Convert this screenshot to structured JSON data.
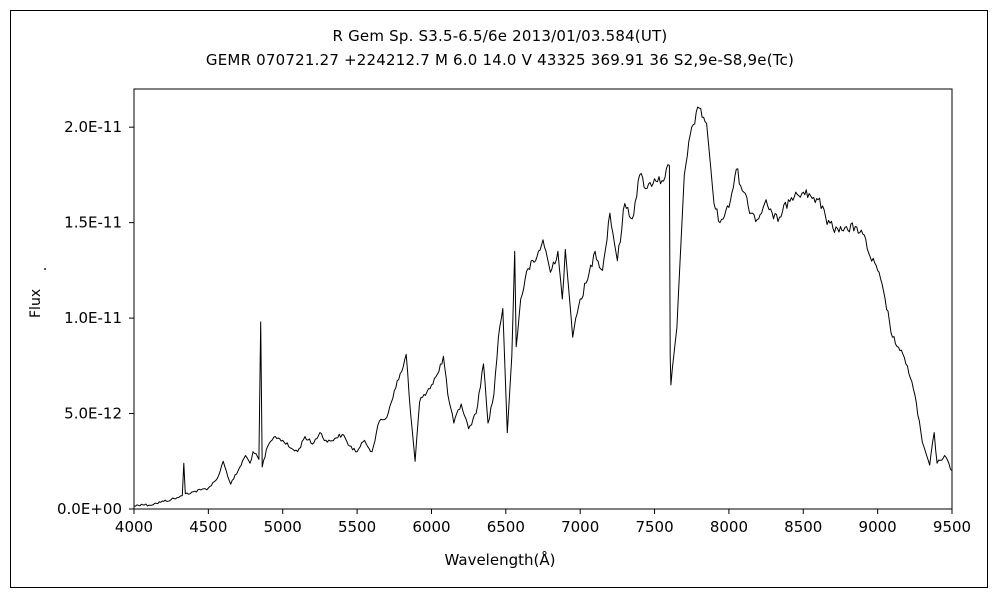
{
  "chart_data": {
    "type": "line",
    "title": "R Gem     Sp. S3.5-6.5/6e     2013/01/03.584(UT)",
    "subtitle": "GEMR 070721.27 +224212.7 M 6.0 14.0 V 43325 369.91 36 S2,9e-S8,9e(Tc)",
    "xlabel": "Wavelength(Å)",
    "ylabel": "Flux",
    "xlim": [
      4000,
      9500
    ],
    "ylim": [
      0,
      2.2e-11
    ],
    "grid": false,
    "x_ticks": [
      4000,
      4500,
      5000,
      5500,
      6000,
      6500,
      7000,
      7500,
      8000,
      8500,
      9000,
      9500
    ],
    "x_tick_labels": [
      "4000",
      "4500",
      "5000",
      "5500",
      "6000",
      "6500",
      "7000",
      "7500",
      "8000",
      "8500",
      "9000",
      "9500"
    ],
    "y_ticks": [
      0,
      5e-12,
      1e-11,
      1.5e-11,
      2e-11
    ],
    "y_tick_labels": [
      "0.0E+00",
      "5.0E-12",
      "1.0E-11",
      "1.5E-11",
      "2.0E-11"
    ],
    "series": [
      {
        "values": [
          [
            4000,
            1.5e-13
          ],
          [
            4050,
            2.5e-13
          ],
          [
            4100,
            2e-13
          ],
          [
            4150,
            3e-13
          ],
          [
            4200,
            4e-13
          ],
          [
            4250,
            5e-13
          ],
          [
            4300,
            6e-13
          ],
          [
            4325,
            7e-13
          ],
          [
            4335,
            2.4e-12
          ],
          [
            4345,
            8e-13
          ],
          [
            4400,
            9e-13
          ],
          [
            4450,
            1e-12
          ],
          [
            4500,
            1.1e-12
          ],
          [
            4550,
            1.5e-12
          ],
          [
            4580,
            2e-12
          ],
          [
            4600,
            2.5e-12
          ],
          [
            4620,
            2e-12
          ],
          [
            4650,
            1.3e-12
          ],
          [
            4700,
            2e-12
          ],
          [
            4750,
            2.8e-12
          ],
          [
            4780,
            2.4e-12
          ],
          [
            4800,
            3e-12
          ],
          [
            4840,
            2.6e-12
          ],
          [
            4852,
            9.8e-12
          ],
          [
            4862,
            2.2e-12
          ],
          [
            4900,
            3.3e-12
          ],
          [
            4950,
            3.8e-12
          ],
          [
            5000,
            3.6e-12
          ],
          [
            5050,
            3.2e-12
          ],
          [
            5100,
            3e-12
          ],
          [
            5150,
            3.8e-12
          ],
          [
            5200,
            3.4e-12
          ],
          [
            5250,
            4e-12
          ],
          [
            5300,
            3.5e-12
          ],
          [
            5350,
            3.7e-12
          ],
          [
            5400,
            3.9e-12
          ],
          [
            5450,
            3.3e-12
          ],
          [
            5500,
            3e-12
          ],
          [
            5550,
            3.6e-12
          ],
          [
            5600,
            3e-12
          ],
          [
            5650,
            4.6e-12
          ],
          [
            5700,
            4.8e-12
          ],
          [
            5750,
            6.2e-12
          ],
          [
            5800,
            7.2e-12
          ],
          [
            5830,
            8.1e-12
          ],
          [
            5860,
            5e-12
          ],
          [
            5890,
            2.5e-12
          ],
          [
            5920,
            5.6e-12
          ],
          [
            5950,
            6e-12
          ],
          [
            6000,
            6.5e-12
          ],
          [
            6050,
            7.2e-12
          ],
          [
            6080,
            8e-12
          ],
          [
            6110,
            6e-12
          ],
          [
            6150,
            4.5e-12
          ],
          [
            6200,
            5.5e-12
          ],
          [
            6250,
            4.2e-12
          ],
          [
            6300,
            5e-12
          ],
          [
            6350,
            7.6e-12
          ],
          [
            6380,
            4.5e-12
          ],
          [
            6420,
            6e-12
          ],
          [
            6450,
            9e-12
          ],
          [
            6480,
            1.05e-11
          ],
          [
            6510,
            4e-12
          ],
          [
            6540,
            8e-12
          ],
          [
            6560,
            1.35e-11
          ],
          [
            6570,
            8.5e-12
          ],
          [
            6600,
            1.1e-11
          ],
          [
            6650,
            1.26e-11
          ],
          [
            6700,
            1.3e-11
          ],
          [
            6750,
            1.41e-11
          ],
          [
            6800,
            1.24e-11
          ],
          [
            6850,
            1.35e-11
          ],
          [
            6880,
            1.1e-11
          ],
          [
            6900,
            1.36e-11
          ],
          [
            6950,
            9e-12
          ],
          [
            7000,
            1.1e-11
          ],
          [
            7050,
            1.2e-11
          ],
          [
            7100,
            1.35e-11
          ],
          [
            7150,
            1.25e-11
          ],
          [
            7200,
            1.55e-11
          ],
          [
            7250,
            1.3e-11
          ],
          [
            7300,
            1.6e-11
          ],
          [
            7350,
            1.52e-11
          ],
          [
            7400,
            1.75e-11
          ],
          [
            7450,
            1.68e-11
          ],
          [
            7500,
            1.73e-11
          ],
          [
            7550,
            1.72e-11
          ],
          [
            7600,
            1.8e-11
          ],
          [
            7605,
            8e-12
          ],
          [
            7610,
            6.5e-12
          ],
          [
            7650,
            9.5e-12
          ],
          [
            7700,
            1.75e-11
          ],
          [
            7750,
            2e-11
          ],
          [
            7800,
            2.1e-11
          ],
          [
            7850,
            2.02e-11
          ],
          [
            7900,
            1.6e-11
          ],
          [
            7940,
            1.5e-11
          ],
          [
            8000,
            1.58e-11
          ],
          [
            8050,
            1.78e-11
          ],
          [
            8100,
            1.66e-11
          ],
          [
            8150,
            1.55e-11
          ],
          [
            8200,
            1.52e-11
          ],
          [
            8250,
            1.62e-11
          ],
          [
            8300,
            1.52e-11
          ],
          [
            8350,
            1.53e-11
          ],
          [
            8400,
            1.62e-11
          ],
          [
            8450,
            1.66e-11
          ],
          [
            8500,
            1.66e-11
          ],
          [
            8550,
            1.64e-11
          ],
          [
            8600,
            1.62e-11
          ],
          [
            8650,
            1.53e-11
          ],
          [
            8700,
            1.47e-11
          ],
          [
            8750,
            1.48e-11
          ],
          [
            8800,
            1.46e-11
          ],
          [
            8850,
            1.48e-11
          ],
          [
            8900,
            1.44e-11
          ],
          [
            8950,
            1.32e-11
          ],
          [
            9000,
            1.25e-11
          ],
          [
            9050,
            1.1e-11
          ],
          [
            9100,
            9e-12
          ],
          [
            9150,
            8.3e-12
          ],
          [
            9200,
            7.5e-12
          ],
          [
            9250,
            6e-12
          ],
          [
            9300,
            3.5e-12
          ],
          [
            9350,
            2.3e-12
          ],
          [
            9380,
            4e-12
          ],
          [
            9400,
            2.4e-12
          ],
          [
            9450,
            2.8e-12
          ],
          [
            9500,
            2e-12
          ]
        ]
      }
    ]
  }
}
